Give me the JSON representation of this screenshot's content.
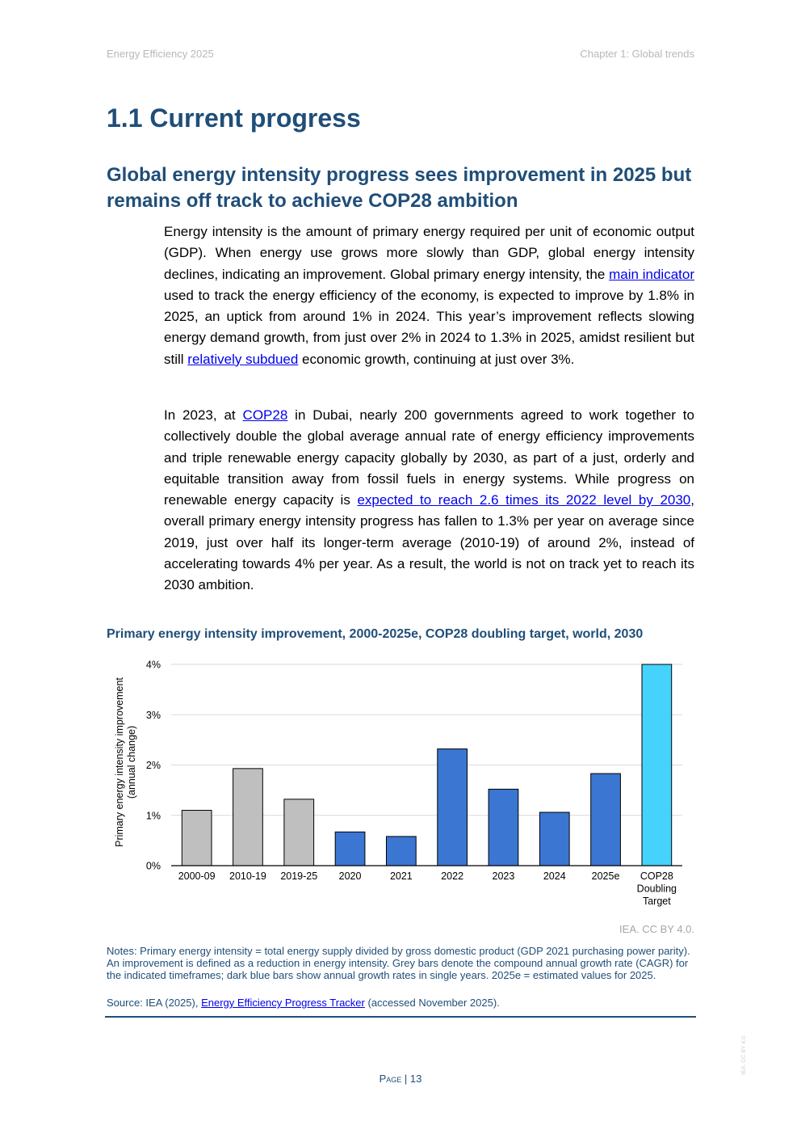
{
  "header": {
    "left": "Energy Efficiency 2025",
    "right": "Chapter 1: Global trends"
  },
  "section_title": "1.1 Current progress",
  "subsection_title": "Global energy intensity progress sees improvement in 2025 but remains off track to achieve COP28 ambition",
  "paragraph1": {
    "t1": "Energy intensity is the amount of primary energy required per unit of economic output (GDP). When energy use grows more slowly than GDP, global energy intensity declines, indicating an improvement. Global primary energy intensity, the ",
    "link1": "main indicator",
    "t2": " used to track the energy efficiency of the economy, is expected to improve by 1.8% in 2025, an uptick from around 1% in 2024. This year’s improvement reflects slowing energy demand growth, from just over 2% in 2024 to 1.3% in 2025, amidst resilient but still ",
    "link2": "relatively subdued",
    "t3": " economic growth, continuing at just over 3%."
  },
  "paragraph2": {
    "t1": "In 2023, at ",
    "link1": "COP28",
    "t2": " in Dubai, nearly 200 governments agreed to work together to collectively double the global average annual rate of energy efficiency improvements and triple renewable energy capacity globally by 2030, as part of a just, orderly and equitable transition away from fossil fuels in energy systems. While progress on renewable energy capacity is ",
    "link2": "expected to reach 2.6 times its 2022 level by 2030",
    "t3": ", overall primary energy intensity progress has fallen to 1.3% per year on average since 2019, just over half its longer-term average (2010-19) of around 2%, instead of accelerating towards 4% per year. As a result, the world is not on track yet to reach its 2030 ambition."
  },
  "chart_data": {
    "type": "bar",
    "title": "Primary energy intensity improvement, 2000-2025e, COP28 doubling target, world, 2030",
    "ylabel_line1": "Primary energy intensity improvement",
    "ylabel_line2": "(annual change)",
    "xlabel": "",
    "ylim": [
      0,
      4
    ],
    "yticks": [
      "0%",
      "1%",
      "2%",
      "3%",
      "4%"
    ],
    "grid": true,
    "categories": [
      "2000-09",
      "2010-19",
      "2019-25",
      "2020",
      "2021",
      "2022",
      "2023",
      "2024",
      "2025e",
      "COP28 Doubling Target"
    ],
    "values": [
      1.1,
      1.93,
      1.32,
      0.67,
      0.58,
      2.32,
      1.52,
      1.06,
      1.83,
      4.0
    ],
    "bar_colors": [
      "#bfbfbf",
      "#bfbfbf",
      "#bfbfbf",
      "#3a76d2",
      "#3a76d2",
      "#3a76d2",
      "#3a76d2",
      "#3a76d2",
      "#3a76d2",
      "#45d2fb"
    ]
  },
  "credit": "IEA. CC BY 4.0.",
  "notes": "Notes: Primary energy intensity = total energy supply divided by gross domestic product (GDP 2021 purchasing power parity). An improvement is defined as a reduction in energy intensity. Grey bars denote the compound annual growth rate (CAGR) for the indicated timeframes; dark blue bars show annual growth rates in single years. 2025e = estimated values for 2025.",
  "source": {
    "prefix": "Source: IEA (2025), ",
    "link": "Energy Efficiency Progress Tracker",
    "suffix": " (accessed November 2025)."
  },
  "page": {
    "word": "Page",
    "sep": " | ",
    "number": "13"
  },
  "watermark": "IEA. CC BY 4.0."
}
